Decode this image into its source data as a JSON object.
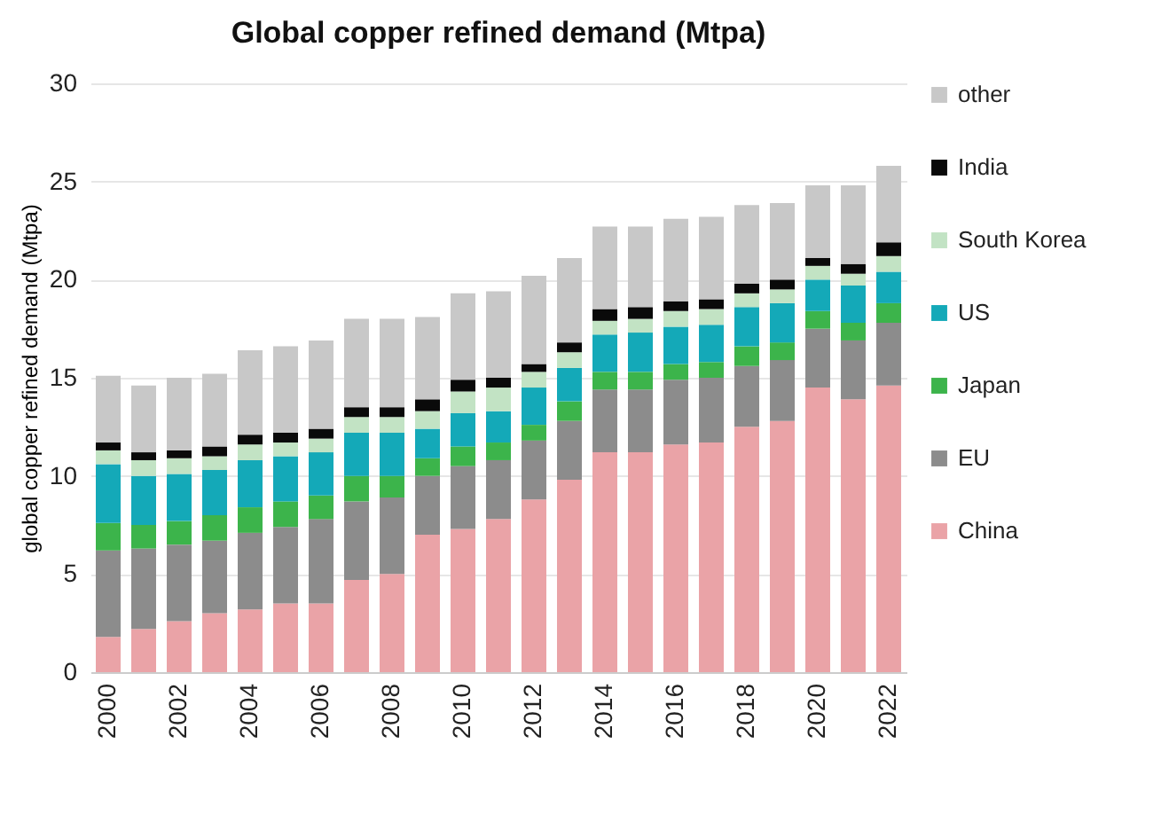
{
  "chart_data": {
    "type": "bar",
    "title": "Global copper refined demand (Mtpa)",
    "ylabel": "global copper refined demand (Mtpa)",
    "categories": [
      "2000",
      null,
      "2002",
      null,
      "2004",
      null,
      "2006",
      null,
      "2008",
      null,
      "2010",
      null,
      "2012",
      null,
      "2014",
      null,
      "2016",
      null,
      "2018",
      null,
      "2020",
      null,
      "2022"
    ],
    "stacked": true,
    "ylim": [
      0,
      30
    ],
    "yticks": [
      0,
      5,
      10,
      15,
      20,
      25,
      30
    ],
    "grid": "y",
    "legend": "right",
    "series": [
      {
        "name": "China",
        "color": "#eaa3a7",
        "values": [
          1.8,
          2.2,
          2.6,
          3.0,
          3.2,
          3.5,
          3.5,
          4.7,
          5.0,
          7.0,
          7.3,
          7.8,
          8.8,
          9.8,
          11.2,
          11.2,
          11.6,
          11.7,
          12.5,
          12.8,
          14.5,
          13.9,
          14.6
        ]
      },
      {
        "name": "EU",
        "color": "#8c8c8c",
        "values": [
          4.4,
          4.1,
          3.9,
          3.7,
          3.9,
          3.9,
          4.3,
          4.0,
          3.9,
          3.0,
          3.2,
          3.0,
          3.0,
          3.0,
          3.2,
          3.2,
          3.3,
          3.3,
          3.1,
          3.1,
          3.0,
          3.0,
          3.2
        ]
      },
      {
        "name": "Japan",
        "color": "#3cb44b",
        "values": [
          1.4,
          1.2,
          1.2,
          1.3,
          1.3,
          1.3,
          1.2,
          1.3,
          1.1,
          0.9,
          1.0,
          0.9,
          0.8,
          1.0,
          0.9,
          0.9,
          0.8,
          0.8,
          1.0,
          0.9,
          0.9,
          0.9,
          1.0
        ]
      },
      {
        "name": "US",
        "color": "#14a9b8",
        "values": [
          3.0,
          2.5,
          2.4,
          2.3,
          2.4,
          2.3,
          2.2,
          2.2,
          2.2,
          1.5,
          1.7,
          1.6,
          1.9,
          1.7,
          1.9,
          2.0,
          1.9,
          1.9,
          2.0,
          2.0,
          1.6,
          1.9,
          1.6
        ]
      },
      {
        "name": "South Korea",
        "color": "#c2e3c4",
        "values": [
          0.7,
          0.8,
          0.8,
          0.7,
          0.8,
          0.7,
          0.7,
          0.8,
          0.8,
          0.9,
          1.1,
          1.2,
          0.8,
          0.8,
          0.7,
          0.7,
          0.8,
          0.8,
          0.7,
          0.7,
          0.7,
          0.6,
          0.8
        ]
      },
      {
        "name": "India",
        "color": "#0a0a0a",
        "values": [
          0.4,
          0.4,
          0.4,
          0.5,
          0.5,
          0.5,
          0.5,
          0.5,
          0.5,
          0.6,
          0.6,
          0.5,
          0.4,
          0.5,
          0.6,
          0.6,
          0.5,
          0.5,
          0.5,
          0.5,
          0.4,
          0.5,
          0.7
        ]
      },
      {
        "name": "other",
        "color": "#c8c8c8",
        "values": [
          3.4,
          3.4,
          3.7,
          3.7,
          4.3,
          4.4,
          4.5,
          4.5,
          4.5,
          4.2,
          4.4,
          4.4,
          4.5,
          4.3,
          4.2,
          4.1,
          4.2,
          4.2,
          4.0,
          3.9,
          3.7,
          4.0,
          3.9
        ]
      }
    ]
  }
}
